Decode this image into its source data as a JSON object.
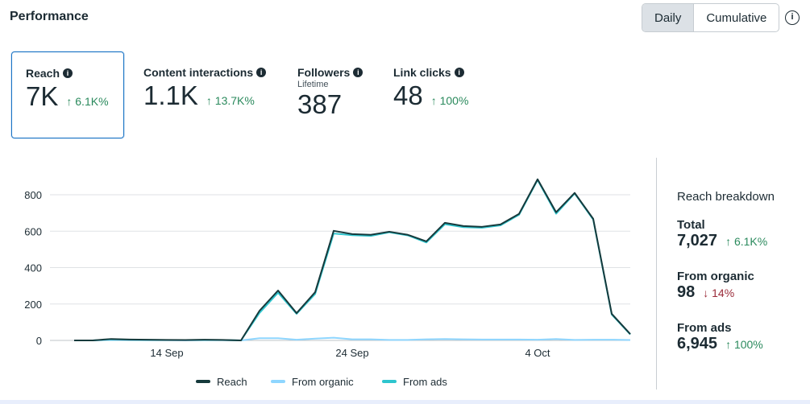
{
  "header": {
    "title": "Performance",
    "toggle": [
      "Daily",
      "Cumulative"
    ],
    "selected": "Daily",
    "info_icon": "info-icon"
  },
  "metrics": [
    {
      "label": "Reach",
      "value": "7K",
      "change": "↑ 6.1K%",
      "direction": "up"
    },
    {
      "label": "Content interactions",
      "value": "1.1K",
      "change": "↑ 13.7K%",
      "direction": "up"
    },
    {
      "label": "Followers",
      "sublabel": "Lifetime",
      "value": "387"
    },
    {
      "label": "Link clicks",
      "value": "48",
      "change": "↑ 100%",
      "direction": "up"
    }
  ],
  "breakdown": {
    "title": "Reach breakdown",
    "items": [
      {
        "label": "Total",
        "value": "7,027",
        "change": "↑ 6.1K%",
        "direction": "up"
      },
      {
        "label": "From organic",
        "value": "98",
        "change": "↓ 14%",
        "direction": "down"
      },
      {
        "label": "From ads",
        "value": "6,945",
        "change": "↑ 100%",
        "direction": "up"
      }
    ]
  },
  "colors": {
    "reach": "#163a3c",
    "organic": "#8fd6ff",
    "ads": "#2ec5ce",
    "up": "#2b8a5d",
    "down": "#9b2c3a"
  },
  "chart_data": {
    "type": "line",
    "x": [
      "9 Sep",
      "10 Sep",
      "11 Sep",
      "12 Sep",
      "13 Sep",
      "14 Sep",
      "15 Sep",
      "16 Sep",
      "17 Sep",
      "18 Sep",
      "19 Sep",
      "20 Sep",
      "21 Sep",
      "22 Sep",
      "23 Sep",
      "24 Sep",
      "25 Sep",
      "26 Sep",
      "27 Sep",
      "28 Sep",
      "29 Sep",
      "30 Sep",
      "1 Oct",
      "2 Oct",
      "3 Oct",
      "4 Oct",
      "5 Oct",
      "6 Oct",
      "7 Oct",
      "8 Oct",
      "9 Oct"
    ],
    "xticks": [
      {
        "index": 5,
        "label": "14 Sep"
      },
      {
        "index": 15,
        "label": "24 Sep"
      },
      {
        "index": 25,
        "label": "4 Oct"
      }
    ],
    "yticks": [
      0,
      200,
      400,
      600,
      800
    ],
    "ylim": [
      0,
      800
    ],
    "series": [
      {
        "name": "Reach",
        "values": [
          0,
          0,
          8,
          5,
          4,
          3,
          2,
          4,
          3,
          0,
          163,
          274,
          150,
          265,
          602,
          584,
          580,
          597,
          580,
          544,
          646,
          628,
          624,
          637,
          695,
          885,
          704,
          810,
          668,
          146,
          35
        ]
      },
      {
        "name": "From organic",
        "values": [
          0,
          0,
          2,
          1,
          1,
          1,
          0,
          1,
          1,
          0,
          12,
          12,
          4,
          10,
          15,
          6,
          6,
          3,
          3,
          6,
          8,
          6,
          5,
          5,
          5,
          4,
          8,
          3,
          4,
          4,
          2
        ]
      },
      {
        "name": "From ads",
        "values": [
          0,
          0,
          6,
          4,
          3,
          2,
          2,
          3,
          2,
          0,
          151,
          262,
          146,
          255,
          587,
          578,
          574,
          594,
          577,
          538,
          638,
          622,
          619,
          632,
          690,
          881,
          696,
          807,
          664,
          142,
          33
        ]
      }
    ],
    "legend_position": "bottom",
    "grid": true
  }
}
